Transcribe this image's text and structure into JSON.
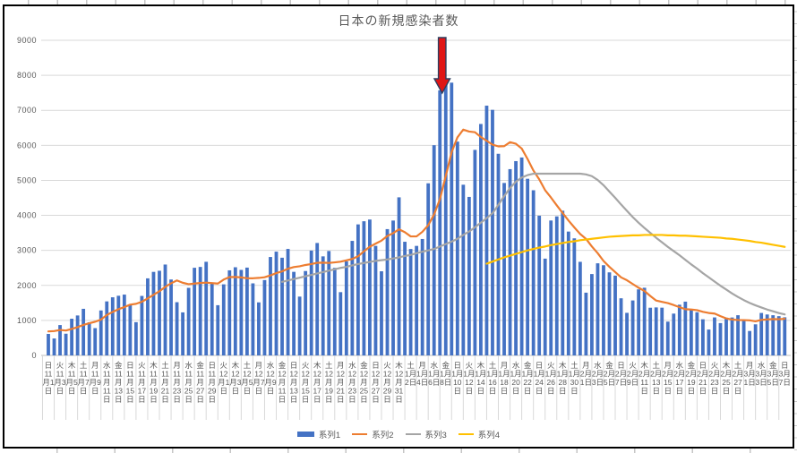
{
  "chart_data": {
    "type": "combo-bar-line",
    "title": "日本の新規感染者数",
    "xlabel": "",
    "ylabel": "",
    "ylim": [
      0,
      9000
    ],
    "y_ticks": [
      0,
      1000,
      2000,
      3000,
      4000,
      5000,
      6000,
      7000,
      8000,
      9000
    ],
    "grid": "horizontal",
    "legend_position": "bottom",
    "x_range_note": "daily values 11月1日–3月7日, one bar per day, tick labels every 2nd day",
    "x_tick_labels": [
      {
        "w": "日",
        "d": "11月1日"
      },
      {
        "w": "火",
        "d": "11月3日"
      },
      {
        "w": "木",
        "d": "11月5日"
      },
      {
        "w": "土",
        "d": "11月7日"
      },
      {
        "w": "月",
        "d": "11月9日"
      },
      {
        "w": "水",
        "d": "11月11日"
      },
      {
        "w": "金",
        "d": "11月13日"
      },
      {
        "w": "日",
        "d": "11月15日"
      },
      {
        "w": "火",
        "d": "11月17日"
      },
      {
        "w": "木",
        "d": "11月19日"
      },
      {
        "w": "土",
        "d": "11月21日"
      },
      {
        "w": "月",
        "d": "11月23日"
      },
      {
        "w": "水",
        "d": "11月25日"
      },
      {
        "w": "金",
        "d": "11月27日"
      },
      {
        "w": "日",
        "d": "11月29日"
      },
      {
        "w": "火",
        "d": "12月1日"
      },
      {
        "w": "木",
        "d": "12月3日"
      },
      {
        "w": "土",
        "d": "12月5日"
      },
      {
        "w": "月",
        "d": "12月7日"
      },
      {
        "w": "水",
        "d": "12月9日"
      },
      {
        "w": "金",
        "d": "12月11日"
      },
      {
        "w": "日",
        "d": "12月13日"
      },
      {
        "w": "火",
        "d": "12月15日"
      },
      {
        "w": "木",
        "d": "12月17日"
      },
      {
        "w": "土",
        "d": "12月19日"
      },
      {
        "w": "月",
        "d": "12月21日"
      },
      {
        "w": "水",
        "d": "12月23日"
      },
      {
        "w": "金",
        "d": "12月25日"
      },
      {
        "w": "日",
        "d": "12月27日"
      },
      {
        "w": "火",
        "d": "12月29日"
      },
      {
        "w": "木",
        "d": "12月31日"
      },
      {
        "w": "土",
        "d": "1月2日"
      },
      {
        "w": "月",
        "d": "1月4日"
      },
      {
        "w": "水",
        "d": "1月6日"
      },
      {
        "w": "金",
        "d": "1月8日"
      },
      {
        "w": "日",
        "d": "1月10日"
      },
      {
        "w": "火",
        "d": "1月12日"
      },
      {
        "w": "木",
        "d": "1月14日"
      },
      {
        "w": "土",
        "d": "1月16日"
      },
      {
        "w": "月",
        "d": "1月18日"
      },
      {
        "w": "水",
        "d": "1月20日"
      },
      {
        "w": "金",
        "d": "1月22日"
      },
      {
        "w": "日",
        "d": "1月24日"
      },
      {
        "w": "火",
        "d": "1月26日"
      },
      {
        "w": "木",
        "d": "1月28日"
      },
      {
        "w": "土",
        "d": "1月30日"
      },
      {
        "w": "月",
        "d": "2月1日"
      },
      {
        "w": "水",
        "d": "2月3日"
      },
      {
        "w": "金",
        "d": "2月5日"
      },
      {
        "w": "日",
        "d": "2月7日"
      },
      {
        "w": "火",
        "d": "2月9日"
      },
      {
        "w": "木",
        "d": "2月11日"
      },
      {
        "w": "土",
        "d": "2月13日"
      },
      {
        "w": "月",
        "d": "2月15日"
      },
      {
        "w": "水",
        "d": "2月17日"
      },
      {
        "w": "金",
        "d": "2月19日"
      },
      {
        "w": "日",
        "d": "2月21日"
      },
      {
        "w": "火",
        "d": "2月23日"
      },
      {
        "w": "木",
        "d": "2月25日"
      },
      {
        "w": "土",
        "d": "2月27日"
      },
      {
        "w": "月",
        "d": "3月1日"
      },
      {
        "w": "水",
        "d": "3月3日"
      },
      {
        "w": "金",
        "d": "3月5日"
      },
      {
        "w": "日",
        "d": "3月7日"
      }
    ],
    "series": [
      {
        "name": "系列1",
        "type": "bar",
        "color": "#4472C4",
        "start_index": 0,
        "values": [
          614,
          484,
          867,
          620,
          1048,
          1141,
          1331,
          947,
          780,
          1284,
          1543,
          1660,
          1704,
          1737,
          1441,
          950,
          1699,
          2201,
          2386,
          2418,
          2596,
          2168,
          1520,
          1229,
          1930,
          2503,
          2527,
          2674,
          2066,
          1434,
          2030,
          2430,
          2518,
          2442,
          2508,
          2058,
          1515,
          2152,
          2811,
          2964,
          2790,
          3041,
          2387,
          1680,
          2410,
          2994,
          3211,
          2829,
          2982,
          2501,
          1807,
          2686,
          3271,
          3742,
          3832,
          3881,
          3128,
          2403,
          3607,
          3852,
          4515,
          3246,
          3039,
          3128,
          3325,
          4915,
          6004,
          7571,
          7882,
          7790,
          6106,
          4875,
          4527,
          5870,
          6610,
          7133,
          7014,
          5759,
          4925,
          5320,
          5549,
          5653,
          5045,
          4717,
          3990,
          2764,
          3853,
          3971,
          4133,
          3537,
          3344,
          2673,
          1792,
          2324,
          2631,
          2576,
          2372,
          2279,
          1632,
          1216,
          1570,
          1887,
          1933,
          1362,
          1371,
          1364,
          965,
          1194,
          1448,
          1536,
          1301,
          1234,
          1032,
          739,
          1085,
          923,
          1076,
          1083,
          1148,
          999,
          698,
          888,
          1213,
          1169,
          1148,
          1121,
          1089
        ]
      },
      {
        "name": "系列2",
        "type": "line",
        "color": "#ED7D31",
        "start_index": 0,
        "values": [
          685,
          695,
          727,
          711,
          755,
          807,
          872,
          920,
          962,
          1022,
          1153,
          1241,
          1321,
          1379,
          1450,
          1474,
          1533,
          1627,
          1731,
          1833,
          1956,
          2060,
          2141,
          2074,
          2035,
          2052,
          2068,
          2079,
          2064,
          2052,
          2166,
          2238,
          2240,
          2228,
          2204,
          2203,
          2214,
          2232,
          2286,
          2350,
          2400,
          2476,
          2523,
          2546,
          2583,
          2609,
          2645,
          2650,
          2642,
          2658,
          2676,
          2716,
          2755,
          2831,
          2974,
          3103,
          3192,
          3278,
          3409,
          3492,
          3603,
          3519,
          3399,
          3399,
          3530,
          3717,
          4025,
          4461,
          5123,
          5802,
          6228,
          6449,
          6394,
          6374,
          6237,
          6130,
          6019,
          5970,
          5977,
          6090,
          6044,
          5908,
          5609,
          5281,
          5028,
          4720,
          4510,
          4285,
          4068,
          3852,
          3656,
          3468,
          3329,
          3111,
          2919,
          2697,
          2530,
          2378,
          2229,
          2147,
          2039,
          1933,
          1841,
          1697,
          1567,
          1529,
          1493,
          1439,
          1377,
          1320,
          1311,
          1292,
          1244,
          1212,
          1196,
          1121,
          1056,
          1025,
          1012,
          1008,
          1002,
          974,
          1015,
          1028,
          1038,
          1034,
          1047
        ]
      },
      {
        "name": "系列3",
        "type": "line",
        "color": "#A5A5A5",
        "start_index": 40,
        "values": [
          2100,
          2140,
          2180,
          2220,
          2260,
          2300,
          2340,
          2380,
          2420,
          2460,
          2500,
          2530,
          2570,
          2610,
          2640,
          2670,
          2700,
          2720,
          2740,
          2770,
          2800,
          2840,
          2870,
          2920,
          2960,
          3000,
          3040,
          3110,
          3180,
          3250,
          3330,
          3440,
          3540,
          3660,
          3790,
          3920,
          4060,
          4300,
          4550,
          4780,
          4960,
          5080,
          5150,
          5190,
          5190,
          5190,
          5190,
          5190,
          5190,
          5190,
          5190,
          5190,
          5170,
          5120,
          5010,
          4860,
          4680,
          4500,
          4310,
          4130,
          3950,
          3790,
          3640,
          3500,
          3360,
          3230,
          3100,
          2980,
          2860,
          2730,
          2600,
          2480,
          2350,
          2230,
          2110,
          1990,
          1880,
          1770,
          1670,
          1580,
          1500,
          1430,
          1370,
          1310,
          1260,
          1210,
          1170
        ]
      },
      {
        "name": "系列4",
        "type": "line",
        "color": "#FFC000",
        "start_index": 75,
        "values": [
          2620,
          2680,
          2740,
          2800,
          2850,
          2900,
          2950,
          3000,
          3040,
          3080,
          3110,
          3150,
          3180,
          3210,
          3240,
          3260,
          3290,
          3310,
          3330,
          3350,
          3370,
          3390,
          3400,
          3410,
          3420,
          3430,
          3430,
          3440,
          3440,
          3440,
          3440,
          3430,
          3430,
          3420,
          3420,
          3410,
          3400,
          3390,
          3380,
          3370,
          3360,
          3340,
          3330,
          3310,
          3290,
          3270,
          3240,
          3220,
          3190,
          3160,
          3130,
          3100
        ]
      }
    ],
    "annotation": {
      "shape": "down-arrow",
      "fill": "#E01515",
      "outline": "#2D3E5F",
      "points_at_label": "1月8日",
      "points_at_index": 68,
      "points_at_value": 7882
    }
  },
  "legend": {
    "items": [
      {
        "label": "系列1",
        "color": "#4472C4",
        "swatch": "bar"
      },
      {
        "label": "系列2",
        "color": "#ED7D31",
        "swatch": "line"
      },
      {
        "label": "系列3",
        "color": "#A5A5A5",
        "swatch": "line"
      },
      {
        "label": "系列4",
        "color": "#FFC000",
        "swatch": "line"
      }
    ]
  },
  "colors": {
    "gridline": "#D9D9D9",
    "axis_line": "#BFBFBF",
    "tick_text": "#595959",
    "title_text": "#595959",
    "chart_border": "#000000"
  }
}
